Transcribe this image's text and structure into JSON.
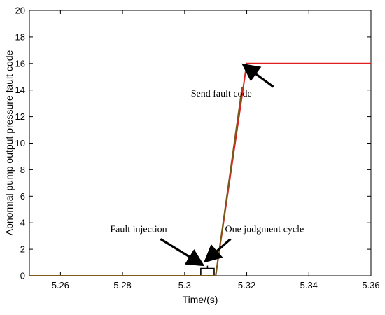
{
  "chart_data": {
    "type": "line",
    "title": "",
    "xlabel": "Time/(s)",
    "ylabel": "Abnormal pump output pressure fault code",
    "xlim": [
      5.25,
      5.36
    ],
    "ylim": [
      0,
      20
    ],
    "x_ticks": [
      "5.26",
      "5.28",
      "5.3",
      "5.32",
      "5.34",
      "5.36"
    ],
    "y_ticks": [
      "0",
      "2",
      "4",
      "6",
      "8",
      "10",
      "12",
      "14",
      "16",
      "18",
      "20"
    ],
    "x_tick_values": [
      5.26,
      5.28,
      5.3,
      5.32,
      5.34,
      5.36
    ],
    "y_tick_values": [
      0,
      2,
      4,
      6,
      8,
      10,
      12,
      14,
      16,
      18,
      20
    ],
    "grid": false,
    "series": [
      {
        "color": "#e02020",
        "x": [
          5.25,
          5.31,
          5.32,
          5.36
        ],
        "y": [
          0,
          0,
          16,
          16
        ]
      },
      {
        "color": "#7a5a1a",
        "x": [
          5.25,
          5.31,
          5.3185
        ],
        "y": [
          0,
          0,
          14.2
        ]
      }
    ],
    "annotations": [
      {
        "text": "Send fault code",
        "x": 5.302,
        "y": 13.5,
        "arrow_to": [
          5.3195,
          15.8
        ]
      },
      {
        "text": "Fault injection",
        "x": 5.276,
        "y": 3.3,
        "arrow_to": [
          5.3052,
          0.9
        ]
      },
      {
        "text": "One judgment cycle",
        "x": 5.313,
        "y": 3.3,
        "arrow_to": [
          5.3072,
          1.2
        ]
      }
    ],
    "bracket": {
      "x_start": 5.3052,
      "x_end": 5.3095,
      "y": 0.55
    }
  }
}
